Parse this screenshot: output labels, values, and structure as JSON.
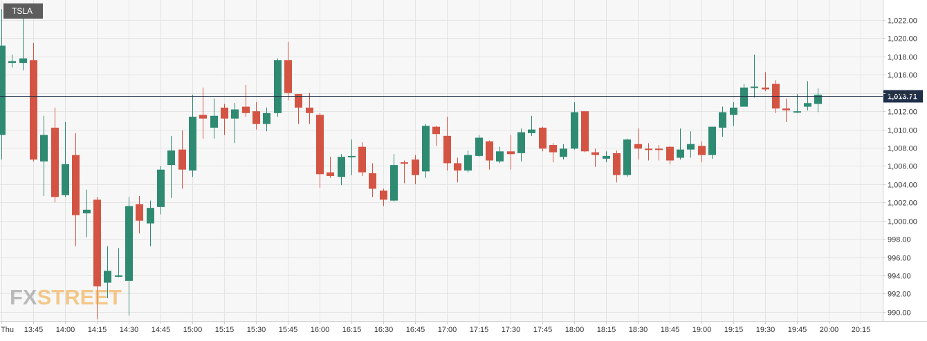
{
  "ticker": "TSLA",
  "logo": {
    "part1": "FX",
    "part2": "STREET"
  },
  "colors": {
    "up": "#2f8a72",
    "down": "#d45444",
    "grid": "#e4e4e4",
    "background": "#f7f7f7",
    "last_price_line": "#1f2f4a",
    "last_price_label_bg": "#1f2f4a",
    "axis_text": "#333333"
  },
  "chart_data": {
    "type": "candlestick",
    "interval_minutes": 5,
    "ylim": [
      989.0,
      1024.2
    ],
    "y_ticks": [
      990,
      992,
      994,
      996,
      998,
      1000,
      1002,
      1004,
      1006,
      1008,
      1010,
      1012,
      1014,
      1016,
      1018,
      1020,
      1022
    ],
    "y_tick_labels": [
      "990.00",
      "992.00",
      "994.00",
      "996.00",
      "998.00",
      "1,000.00",
      "1,002.00",
      "1,004.00",
      "1,006.00",
      "1,008.00",
      "1,010.00",
      "1,012.00",
      "1,014.00",
      "1,016.00",
      "1,018.00",
      "1,020.00",
      "1,022.00"
    ],
    "x_tick_labels": [
      "Thu",
      "13:45",
      "14:00",
      "14:15",
      "14:30",
      "14:45",
      "15:00",
      "15:15",
      "15:30",
      "15:45",
      "16:00",
      "16:15",
      "16:30",
      "16:45",
      "17:00",
      "17:15",
      "17:30",
      "17:45",
      "18:00",
      "18:15",
      "18:30",
      "18:45",
      "19:00",
      "19:15",
      "19:30",
      "19:45",
      "20:00",
      "20:15"
    ],
    "x_ticks": [
      "13:30",
      "13:45",
      "14:00",
      "14:15",
      "14:30",
      "14:45",
      "15:00",
      "15:15",
      "15:30",
      "15:45",
      "16:00",
      "16:15",
      "16:30",
      "16:45",
      "17:00",
      "17:15",
      "17:30",
      "17:45",
      "18:00",
      "18:15",
      "18:30",
      "18:45",
      "19:00",
      "19:15",
      "19:30",
      "19:45",
      "20:00",
      "20:15"
    ],
    "x_start": "13:30",
    "last_price": 1013.71,
    "last_price_label": "1,013.71",
    "candles": [
      {
        "t": "13:30",
        "o": 1009.4,
        "h": 1023.2,
        "l": 1006.7,
        "c": 1019.2
      },
      {
        "t": "13:35",
        "o": 1017.3,
        "h": 1018.2,
        "l": 1016.8,
        "c": 1017.5
      },
      {
        "t": "13:40",
        "o": 1017.3,
        "h": 1023.8,
        "l": 1016.5,
        "c": 1017.8
      },
      {
        "t": "13:45",
        "o": 1017.6,
        "h": 1019.5,
        "l": 1006.5,
        "c": 1006.7
      },
      {
        "t": "13:50",
        "o": 1006.5,
        "h": 1011.5,
        "l": 1002.7,
        "c": 1009.4
      },
      {
        "t": "13:55",
        "o": 1010.2,
        "h": 1012.4,
        "l": 1002.0,
        "c": 1002.6
      },
      {
        "t": "14:00",
        "o": 1002.8,
        "h": 1010.8,
        "l": 1002.6,
        "c": 1006.2
      },
      {
        "t": "14:05",
        "o": 1007.2,
        "h": 1009.6,
        "l": 997.2,
        "c": 1000.6
      },
      {
        "t": "14:10",
        "o": 1000.8,
        "h": 1003.4,
        "l": 998.2,
        "c": 1001.2
      },
      {
        "t": "14:15",
        "o": 1002.3,
        "h": 1002.6,
        "l": 989.2,
        "c": 992.8
      },
      {
        "t": "14:20",
        "o": 993.2,
        "h": 997.2,
        "l": 991.5,
        "c": 994.5
      },
      {
        "t": "14:25",
        "o": 994.0,
        "h": 997.0,
        "l": 993.8,
        "c": 994.0
      },
      {
        "t": "14:30",
        "o": 993.4,
        "h": 1002.6,
        "l": 989.6,
        "c": 1001.6
      },
      {
        "t": "14:35",
        "o": 1001.8,
        "h": 1002.7,
        "l": 998.6,
        "c": 1000.0
      },
      {
        "t": "14:40",
        "o": 999.7,
        "h": 1002.2,
        "l": 997.2,
        "c": 1001.4
      },
      {
        "t": "14:45",
        "o": 1001.5,
        "h": 1006.0,
        "l": 1000.7,
        "c": 1005.6
      },
      {
        "t": "14:50",
        "o": 1006.1,
        "h": 1009.3,
        "l": 1002.5,
        "c": 1007.7
      },
      {
        "t": "14:55",
        "o": 1007.8,
        "h": 1009.9,
        "l": 1003.5,
        "c": 1005.6
      },
      {
        "t": "15:00",
        "o": 1005.5,
        "h": 1013.8,
        "l": 1004.8,
        "c": 1011.4
      },
      {
        "t": "15:05",
        "o": 1011.6,
        "h": 1014.6,
        "l": 1009.0,
        "c": 1011.2
      },
      {
        "t": "15:10",
        "o": 1010.2,
        "h": 1013.4,
        "l": 1009.0,
        "c": 1011.5
      },
      {
        "t": "15:15",
        "o": 1012.4,
        "h": 1012.8,
        "l": 1009.4,
        "c": 1011.2
      },
      {
        "t": "15:20",
        "o": 1011.2,
        "h": 1012.9,
        "l": 1008.5,
        "c": 1012.2
      },
      {
        "t": "15:25",
        "o": 1012.5,
        "h": 1014.9,
        "l": 1011.4,
        "c": 1011.8
      },
      {
        "t": "15:30",
        "o": 1012.0,
        "h": 1013.0,
        "l": 1010.0,
        "c": 1010.6
      },
      {
        "t": "15:35",
        "o": 1010.6,
        "h": 1012.4,
        "l": 1009.8,
        "c": 1011.8
      },
      {
        "t": "15:40",
        "o": 1011.8,
        "h": 1017.8,
        "l": 1011.4,
        "c": 1017.6
      },
      {
        "t": "15:45",
        "o": 1017.6,
        "h": 1019.6,
        "l": 1013.2,
        "c": 1014.0
      },
      {
        "t": "15:50",
        "o": 1013.9,
        "h": 1013.9,
        "l": 1010.6,
        "c": 1012.4
      },
      {
        "t": "15:55",
        "o": 1012.4,
        "h": 1014.0,
        "l": 1010.6,
        "c": 1011.8
      },
      {
        "t": "16:00",
        "o": 1011.6,
        "h": 1011.8,
        "l": 1003.6,
        "c": 1005.1
      },
      {
        "t": "16:05",
        "o": 1005.3,
        "h": 1007.0,
        "l": 1004.7,
        "c": 1004.9
      },
      {
        "t": "16:10",
        "o": 1004.8,
        "h": 1007.3,
        "l": 1003.9,
        "c": 1007.0
      },
      {
        "t": "16:15",
        "o": 1007.0,
        "h": 1008.9,
        "l": 1005.0,
        "c": 1007.1
      },
      {
        "t": "16:20",
        "o": 1008.1,
        "h": 1008.6,
        "l": 1004.9,
        "c": 1005.3
      },
      {
        "t": "16:25",
        "o": 1005.2,
        "h": 1006.3,
        "l": 1002.6,
        "c": 1003.5
      },
      {
        "t": "16:30",
        "o": 1003.3,
        "h": 1003.5,
        "l": 1001.6,
        "c": 1002.3
      },
      {
        "t": "16:35",
        "o": 1002.2,
        "h": 1007.3,
        "l": 1002.1,
        "c": 1006.1
      },
      {
        "t": "16:40",
        "o": 1006.4,
        "h": 1006.6,
        "l": 1004.1,
        "c": 1006.3
      },
      {
        "t": "16:45",
        "o": 1006.7,
        "h": 1007.2,
        "l": 1004.0,
        "c": 1005.0
      },
      {
        "t": "16:50",
        "o": 1005.4,
        "h": 1010.6,
        "l": 1004.7,
        "c": 1010.4
      },
      {
        "t": "16:55",
        "o": 1010.3,
        "h": 1010.4,
        "l": 1008.2,
        "c": 1009.5
      },
      {
        "t": "17:00",
        "o": 1009.3,
        "h": 1011.4,
        "l": 1005.5,
        "c": 1006.3
      },
      {
        "t": "17:05",
        "o": 1006.3,
        "h": 1006.9,
        "l": 1004.2,
        "c": 1005.5
      },
      {
        "t": "17:10",
        "o": 1005.5,
        "h": 1007.7,
        "l": 1005.3,
        "c": 1007.2
      },
      {
        "t": "17:15",
        "o": 1007.1,
        "h": 1009.4,
        "l": 1007.0,
        "c": 1009.1
      },
      {
        "t": "17:20",
        "o": 1008.7,
        "h": 1008.8,
        "l": 1005.6,
        "c": 1006.6
      },
      {
        "t": "17:25",
        "o": 1006.5,
        "h": 1008.1,
        "l": 1006.3,
        "c": 1007.6
      },
      {
        "t": "17:30",
        "o": 1007.6,
        "h": 1009.4,
        "l": 1005.6,
        "c": 1007.3
      },
      {
        "t": "17:35",
        "o": 1007.4,
        "h": 1010.1,
        "l": 1006.5,
        "c": 1009.7
      },
      {
        "t": "17:40",
        "o": 1009.6,
        "h": 1011.5,
        "l": 1009.3,
        "c": 1010.0
      },
      {
        "t": "17:45",
        "o": 1010.2,
        "h": 1010.3,
        "l": 1007.6,
        "c": 1007.9
      },
      {
        "t": "17:50",
        "o": 1008.3,
        "h": 1008.5,
        "l": 1006.4,
        "c": 1007.5
      },
      {
        "t": "17:55",
        "o": 1007.0,
        "h": 1008.4,
        "l": 1006.7,
        "c": 1007.9
      },
      {
        "t": "18:00",
        "o": 1007.9,
        "h": 1013.0,
        "l": 1007.8,
        "c": 1011.9
      },
      {
        "t": "18:05",
        "o": 1012.0,
        "h": 1012.0,
        "l": 1007.5,
        "c": 1007.6
      },
      {
        "t": "18:10",
        "o": 1007.5,
        "h": 1007.9,
        "l": 1005.9,
        "c": 1007.2
      },
      {
        "t": "18:15",
        "o": 1006.8,
        "h": 1007.6,
        "l": 1006.4,
        "c": 1007.1
      },
      {
        "t": "18:20",
        "o": 1007.4,
        "h": 1007.7,
        "l": 1004.2,
        "c": 1005.0
      },
      {
        "t": "18:25",
        "o": 1005.0,
        "h": 1009.0,
        "l": 1004.8,
        "c": 1008.9
      },
      {
        "t": "18:30",
        "o": 1008.4,
        "h": 1010.1,
        "l": 1006.7,
        "c": 1007.9
      },
      {
        "t": "18:35",
        "o": 1007.9,
        "h": 1008.5,
        "l": 1006.6,
        "c": 1007.8
      },
      {
        "t": "18:40",
        "o": 1007.9,
        "h": 1008.3,
        "l": 1006.6,
        "c": 1007.8
      },
      {
        "t": "18:45",
        "o": 1008.1,
        "h": 1008.2,
        "l": 1006.2,
        "c": 1006.6
      },
      {
        "t": "18:50",
        "o": 1006.9,
        "h": 1010.1,
        "l": 1006.7,
        "c": 1007.8
      },
      {
        "t": "18:55",
        "o": 1007.8,
        "h": 1009.8,
        "l": 1006.9,
        "c": 1008.4
      },
      {
        "t": "19:00",
        "o": 1008.2,
        "h": 1008.7,
        "l": 1006.4,
        "c": 1007.2
      },
      {
        "t": "19:05",
        "o": 1007.2,
        "h": 1010.3,
        "l": 1006.8,
        "c": 1010.3
      },
      {
        "t": "19:10",
        "o": 1010.2,
        "h": 1012.5,
        "l": 1009.2,
        "c": 1011.9
      },
      {
        "t": "19:15",
        "o": 1011.6,
        "h": 1013.0,
        "l": 1010.4,
        "c": 1012.4
      },
      {
        "t": "19:20",
        "o": 1012.5,
        "h": 1015.0,
        "l": 1012.5,
        "c": 1014.6
      },
      {
        "t": "19:25",
        "o": 1014.7,
        "h": 1018.2,
        "l": 1013.5,
        "c": 1014.7
      },
      {
        "t": "19:30",
        "o": 1014.6,
        "h": 1016.3,
        "l": 1014.2,
        "c": 1014.4
      },
      {
        "t": "19:35",
        "o": 1015.0,
        "h": 1015.4,
        "l": 1011.8,
        "c": 1012.3
      },
      {
        "t": "19:40",
        "o": 1012.3,
        "h": 1013.4,
        "l": 1010.8,
        "c": 1012.1
      },
      {
        "t": "19:45",
        "o": 1011.9,
        "h": 1013.9,
        "l": 1011.8,
        "c": 1012.0
      },
      {
        "t": "19:50",
        "o": 1012.5,
        "h": 1015.3,
        "l": 1012.1,
        "c": 1012.9
      },
      {
        "t": "19:55",
        "o": 1012.8,
        "h": 1014.5,
        "l": 1011.9,
        "c": 1013.8
      }
    ]
  }
}
